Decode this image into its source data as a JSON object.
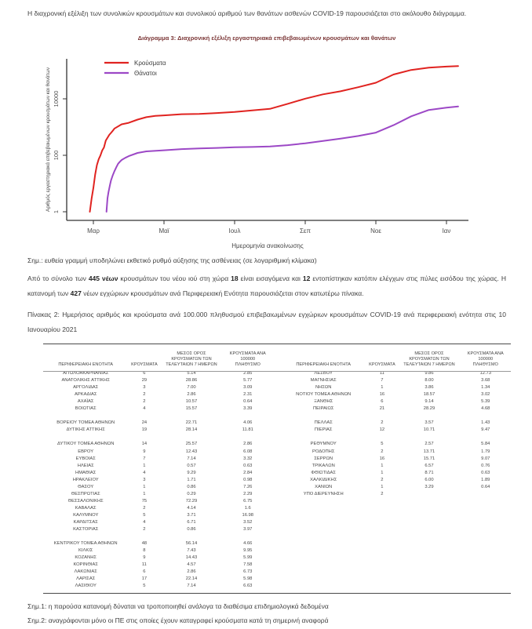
{
  "page": {
    "intro": "Η διαχρονική εξέλιξη των συνολικών κρουσμάτων και συνολικού αριθμού των θανάτων ασθενών COVID-19 παρουσιάζεται στο ακόλουθο διάγραμμα.",
    "chart_note": "Σημ.: ευθεία γραμμή υποδηλώνει εκθετικό ρυθμό αύξησης της ασθένειας (σε λογαριθμική κλίμακα)",
    "paragraph_new_cases": [
      {
        "t": "Από το σύνολο των ",
        "b": false
      },
      {
        "t": "445 νέων",
        "b": true
      },
      {
        "t": " κρουσμάτων του νέου ιού στη χώρα ",
        "b": false
      },
      {
        "t": "18",
        "b": true
      },
      {
        "t": " είναι εισαγόμενα και ",
        "b": false
      },
      {
        "t": "12",
        "b": true
      },
      {
        "t": " εντοπίστηκαν κατόπιν ελέγχων στις πύλες εισόδου της χώρας. Η κατανομή των ",
        "b": false
      },
      {
        "t": "427",
        "b": true
      },
      {
        "t": " νέων εγχώριων κρουσμάτων ανά Περιφερειακή Ενότητα παρουσιάζεται στον κατωτέρω πίνακα.",
        "b": false
      }
    ],
    "footnote1": "Σημ.1: η παρούσα κατανομή δύναται να τροποποιηθεί ανάλογα τα διαθέσιμα επιδημιολογικά δεδομένα",
    "footnote2": "Σημ.2: αναγράφονται μόνο οι ΠΕ στις οποίες έχουν καταγραφεί κρούσματα κατά τη σημερινή αναφορά"
  },
  "chart_data": {
    "type": "line",
    "title": "Διάγραμμα 3: Διαχρονική εξέλιξη εργαστηριακά επιβεβαιωμένων κρουσμάτων και θανάτων",
    "xlabel": "Ημερομηνία ανακοίνωσης",
    "ylabel": "Αριθμός εργαστηριακά επιβεβαιωμένων κρουσμάτων και θανάτων",
    "y_scale": "log",
    "y_ticks": [
      1,
      100,
      10000
    ],
    "x_ticks": [
      "Μαρ",
      "Μαϊ",
      "Ιουλ",
      "Σεπ",
      "Νοε",
      "Ιαν"
    ],
    "x_tick_months_since_mar1": [
      0,
      2,
      4,
      6,
      8,
      10
    ],
    "grid": false,
    "legend_position": "top-left",
    "series": [
      {
        "name": "Κρούσματα",
        "color": "#e02320",
        "x": [
          -0.1,
          -0.05,
          0,
          0.05,
          0.1,
          0.15,
          0.2,
          0.25,
          0.3,
          0.35,
          0.4,
          0.45,
          0.5,
          0.55,
          0.6,
          0.8,
          1.0,
          1.25,
          1.5,
          1.75,
          2.0,
          2.5,
          3.0,
          3.5,
          4.0,
          4.5,
          5.0,
          5.5,
          6.0,
          6.5,
          7.0,
          7.5,
          8.0,
          8.5,
          9.0,
          9.5,
          10.0,
          10.33
        ],
        "values": [
          1,
          3,
          7,
          21,
          45,
          73,
          99,
          150,
          190,
          331,
          418,
          530,
          624,
          743,
          892,
          1250,
          1415,
          1832,
          2235,
          2490,
          2591,
          2850,
          2937,
          3134,
          3409,
          3910,
          4401,
          6632,
          10134,
          14400,
          18475,
          25700,
          37196,
          72510,
          105271,
          126372,
          138850,
          144738
        ]
      },
      {
        "name": "Θάνατοι",
        "color": "#9c48c6",
        "x": [
          0.37,
          0.4,
          0.43,
          0.47,
          0.5,
          0.55,
          0.6,
          0.65,
          0.7,
          0.75,
          0.8,
          0.9,
          1.0,
          1.25,
          1.5,
          2.0,
          2.5,
          3.0,
          3.5,
          4.0,
          4.5,
          5.0,
          5.5,
          6.0,
          6.5,
          7.0,
          7.5,
          8.0,
          8.5,
          9.0,
          9.5,
          10.0,
          10.33
        ],
        "values": [
          1,
          3,
          5,
          9,
          13,
          20,
          28,
          38,
          50,
          59,
          68,
          81,
          93,
          121,
          138,
          151,
          166,
          175,
          183,
          192,
          197,
          206,
          228,
          266,
          322,
          391,
          482,
          635,
          1165,
          2406,
          4044,
          4881,
          5329
        ]
      }
    ]
  },
  "table": {
    "caption": "Πίνακας 2: Ημερήσιος αριθμός και κρούσματα ανά 100.000 πληθυσμού επιβεβαιωμένων εγχώριων κρουσμάτων COVID-19 ανά περιφερειακή ενότητα στις 10 Ιανουαρίου 2021",
    "col_headers": [
      "ΠΕΡΙΦΕΡΕΙΑΚΗ ΕΝΟΤΗΤΑ",
      "ΚΡΟΥΣΜΑΤΑ",
      "ΜΕΣΟΣ ΟΡΟΣ\nΚΡΟΥΣΜΑΤΩΝ ΤΩΝ\nΤΕΛΕΥΤΑΙΩΝ 7 ΗΜΕΡΩΝ",
      "ΚΡΟΥΣΜΑΤΑ ΑΝΑ 100000\nΠΛΗΘΥΣΜΟ"
    ],
    "left_rows": [
      [
        "ΑΙΤΩΛΟΑΚΑΡΝΑΝΙΑΣ",
        "6",
        "5.14",
        "2.85"
      ],
      [
        "ΑΝΑΤΟΛΙΚΗΣ ΑΤΤΙΚΗΣ",
        "29",
        "28.86",
        "5.77"
      ],
      [
        "ΑΡΓΟΛΙΔΑΣ",
        "3",
        "7.00",
        "3.09"
      ],
      [
        "ΑΡΚΑΔΙΑΣ",
        "2",
        "2.86",
        "2.31"
      ],
      [
        "ΑΧΑΪΑΣ",
        "2",
        "10.57",
        "0.64"
      ],
      [
        "ΒΟΙΩΤΙΑΣ",
        "4",
        "15.57",
        "3.39"
      ],
      null,
      [
        "ΒΟΡΕΙΟΥ ΤΟΜΕΑ ΑΘΗΝΩΝ",
        "24",
        "22.71",
        "4.06"
      ],
      [
        "ΔΥΤΙΚΗΣ ΑΤΤΙΚΗΣ",
        "19",
        "28.14",
        "11.81"
      ],
      null,
      [
        "ΔΥΤΙΚΟΥ ΤΟΜΕΑ ΑΘΗΝΩΝ",
        "14",
        "25.57",
        "2.86"
      ],
      [
        "ΕΒΡΟΥ",
        "9",
        "12.43",
        "6.08"
      ],
      [
        "ΕΥΒΟΙΑΣ",
        "7",
        "7.14",
        "3.32"
      ],
      [
        "ΗΛΕΙΑΣ",
        "1",
        "0.57",
        "0.63"
      ],
      [
        "ΗΜΑΘΙΑΣ",
        "4",
        "9.29",
        "2.84"
      ],
      [
        "ΗΡΑΚΛΕΙΟΥ",
        "3",
        "1.71",
        "0.98"
      ],
      [
        "ΘΑΣΟΥ",
        "1",
        "0.86",
        "7.26"
      ],
      [
        "ΘΕΣΠΡΩΤΙΑΣ",
        "1",
        "0.29",
        "2.29"
      ],
      [
        "ΘΕΣΣΑΛΟΝΙΚΗΣ",
        "75",
        "72.29",
        "6.75"
      ],
      [
        "ΚΑΒΑΛΑΣ",
        "2",
        "4.14",
        "1.6"
      ],
      [
        "ΚΑΛΥΜΝΟΥ",
        "5",
        "3.71",
        "16.98"
      ],
      [
        "ΚΑΡΔΙΤΣΑΣ",
        "4",
        "6.71",
        "3.52"
      ],
      [
        "ΚΑΣΤΟΡΙΑΣ",
        "2",
        "0.86",
        "3.97"
      ],
      null,
      [
        "ΚΕΝΤΡΙΚΟΥ ΤΟΜΕΑ ΑΘΗΝΩΝ",
        "48",
        "56.14",
        "4.66"
      ],
      [
        "ΚΙΛΚΙΣ",
        "8",
        "7.43",
        "9.95"
      ],
      [
        "ΚΟΖΑΝΗΣ",
        "9",
        "14.43",
        "5.99"
      ],
      [
        "ΚΟΡΙΝΘΙΑΣ",
        "11",
        "4.57",
        "7.58"
      ],
      [
        "ΛΑΚΩΝΙΑΣ",
        "6",
        "2.86",
        "6.73"
      ],
      [
        "ΛΑΡΙΣΑΣ",
        "17",
        "22.14",
        "5.98"
      ],
      [
        "ΛΑΣΙΘΙΟΥ",
        "5",
        "7.14",
        "6.63"
      ]
    ],
    "right_rows": [
      [
        "ΛΕΣΒΟΥ",
        "11",
        "9.86",
        "12.73"
      ],
      [
        "ΜΑΓΝΗΣΙΑΣ",
        "7",
        "8.00",
        "3.68"
      ],
      [
        "ΝΗΣΩΝ",
        "1",
        "3.86",
        "1.34"
      ],
      [
        "ΝΟΤΙΟΥ ΤΟΜΕΑ ΑΘΗΝΩΝ",
        "16",
        "18.57",
        "3.02"
      ],
      [
        "ΞΑΝΘΗΣ",
        "6",
        "9.14",
        "5.39"
      ],
      [
        "ΠΕΙΡΑΙΩΣ",
        "21",
        "28.29",
        "4.68"
      ],
      null,
      [
        "ΠΕΛΛΑΣ",
        "2",
        "3.57",
        "1.43"
      ],
      [
        "ΠΙΕΡΙΑΣ",
        "12",
        "10.71",
        "9.47"
      ],
      null,
      [
        "ΡΕΘΥΜΝΟΥ",
        "5",
        "2.57",
        "5.84"
      ],
      [
        "ΡΟΔΟΠΗΣ",
        "2",
        "13.71",
        "1.79"
      ],
      [
        "ΣΕΡΡΩΝ",
        "16",
        "15.71",
        "9.07"
      ],
      [
        "ΤΡΙΚΑΛΩΝ",
        "1",
        "6.57",
        "0.76"
      ],
      [
        "ΦΘΙΩΤΙΔΑΣ",
        "1",
        "8.71",
        "0.63"
      ],
      [
        "ΧΑΛΚΙΔΙΚΗΣ",
        "2",
        "6.00",
        "1.89"
      ],
      [
        "ΧΑΝΙΩΝ",
        "1",
        "3.29",
        "0.64"
      ],
      [
        "ΥΠΟ ΔΙΕΡΕΥΝΗΣΗ",
        "2",
        "",
        ""
      ]
    ]
  }
}
